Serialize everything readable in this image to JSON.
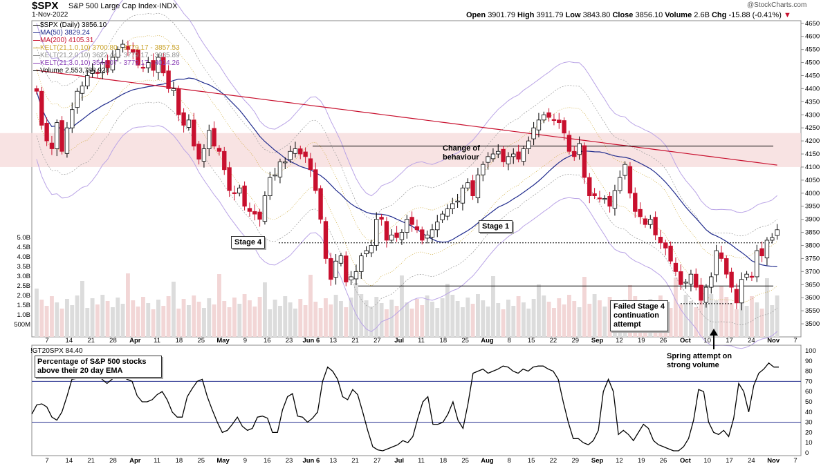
{
  "header": {
    "ticker": "$SPX",
    "description": "S&P 500 Large Cap Index·INDX",
    "date": "1-Nov-2022",
    "watermark": "@StockCharts.com",
    "ohlc": [
      {
        "label": "Open",
        "value": "3901.79"
      },
      {
        "label": "High",
        "value": "3911.79"
      },
      {
        "label": "Low",
        "value": "3843.80"
      },
      {
        "label": "Close",
        "value": "3856.10"
      },
      {
        "label": "Volume",
        "value": "2.6B"
      },
      {
        "label": "Chg",
        "value": "-15.88 (-0.41%)"
      }
    ],
    "chg_icon": "down-triangle-icon"
  },
  "legend": [
    {
      "text": "$SPX (Daily) 3856.10",
      "color": "#000000"
    },
    {
      "text": "MA(50) 3829.24",
      "color": "#1f2a8c"
    },
    {
      "text": "MA(200) 4105.31",
      "color": "#c8102e"
    },
    {
      "text": "KELT(21,1.0,10) 3700.80 - 3779.17 - 3857.53",
      "color": "#c9a227"
    },
    {
      "text": "KELT(21,2.0,10) 3622.44 - 3779.17 - 3935.89",
      "color": "#8e8e8e"
    },
    {
      "text": "KELT(21,3.0,10) 3544.07 - 3779.17 - 4014.26",
      "color": "#8a3fb5"
    },
    {
      "text": "Volume 2,553,788,928",
      "color": "#000000"
    }
  ],
  "annotations": {
    "stage4_left": "Stage 4",
    "change_of_behaviour": [
      "Change of",
      "behaviour"
    ],
    "stage1": "Stage 1",
    "failed_stage4": [
      "Failed Stage 4",
      "continuation",
      "attempt"
    ],
    "spring": [
      "Spring attempt on",
      "strong volume"
    ]
  },
  "lower": {
    "title": "!GT20SPX 84.40",
    "box": [
      "Percentage of S&P 500 stocks",
      "above their 20 day EMA"
    ]
  },
  "colors": {
    "up": "#ffffff",
    "down": "#c8102e",
    "ma50": "#1f2a8c",
    "ma200": "#c8102e",
    "kelt1": "#c9a227",
    "kelt2": "#999999",
    "kelt3": "#b9a3e6",
    "zone": "#f6dcdc"
  },
  "chart_data": [
    {
      "type": "candlestick",
      "title": "$SPX S&P 500 Large Cap Index",
      "ylim": [
        3450,
        4660
      ],
      "y_ticks": [
        3500,
        3550,
        3600,
        3650,
        3700,
        3750,
        3800,
        3850,
        3900,
        3950,
        4000,
        4050,
        4100,
        4150,
        4200,
        4250,
        4300,
        4350,
        4400,
        4450,
        4500,
        4550,
        4600,
        4650
      ],
      "x_labels": [
        "7",
        "14",
        "21",
        "28",
        "Apr",
        "11",
        "18",
        "25",
        "May",
        "9",
        "16",
        "23",
        "Jun 6",
        "13",
        "21",
        "27",
        "Jul",
        "11",
        "18",
        "25",
        "Aug",
        "8",
        "15",
        "22",
        "29",
        "Sep",
        "12",
        "19",
        "26",
        "Oct",
        "10",
        "17",
        "24",
        "Nov",
        "7"
      ],
      "volume_ticks": [
        "500M",
        "1.0B",
        "1.5B",
        "2.0B",
        "2.5B",
        "3.0B",
        "3.5B",
        "4.0B",
        "4.5B",
        "5.0B"
      ],
      "horizontal_levels": {
        "resistance": 4180,
        "stage1_dotted": 3810,
        "support": 3645,
        "failed_dotted": 3577
      },
      "resistance_zone": [
        4100,
        4230
      ],
      "closes": [
        4390,
        4260,
        4200,
        4170,
        4270,
        4160,
        4250,
        4320,
        4390,
        4410,
        4450,
        4470,
        4460,
        4500,
        4480,
        4520,
        4550,
        4570,
        4550,
        4540,
        4490,
        4480,
        4500,
        4470,
        4520,
        4460,
        4400,
        4400,
        4300,
        4260,
        4280,
        4180,
        4130,
        4170,
        4240,
        4180,
        4160,
        4090,
        4010,
        4000,
        4020,
        3950,
        3930,
        3920,
        3900,
        3990,
        4060,
        4070,
        4120,
        4120,
        4160,
        4170,
        4150,
        4140,
        4090,
        4010,
        3900,
        3750,
        3670,
        3740,
        3760,
        3660,
        3680,
        3700,
        3760,
        3780,
        3800,
        3900,
        3900,
        3820,
        3840,
        3830,
        3850,
        3900,
        3880,
        3860,
        3820,
        3840,
        3860,
        3890,
        3920,
        3940,
        3960,
        3970,
        4020,
        4040,
        3990,
        4070,
        4110,
        4140,
        4150,
        4160,
        4120,
        4140,
        4150,
        4130,
        4170,
        4200,
        4250,
        4280,
        4300,
        4290,
        4280,
        4270,
        4230,
        4160,
        4140,
        4190,
        4060,
        3990,
        3990,
        3980,
        3980,
        3950,
        4010,
        4060,
        4110,
        4000,
        3930,
        3910,
        3880,
        3900,
        3840,
        3810,
        3790,
        3740,
        3700,
        3650,
        3660,
        3690,
        3640,
        3590,
        3640,
        3680,
        3780,
        3750,
        3690,
        3640,
        3580,
        3670,
        3690,
        3680,
        3780,
        3760,
        3820,
        3830,
        3860
      ]
    },
    {
      "type": "line",
      "title": "!GT20SPX 84.40",
      "ylim": [
        0,
        100
      ],
      "y_ticks": [
        0,
        10,
        20,
        30,
        40,
        50,
        60,
        70,
        80,
        90,
        100
      ],
      "reference_lines": [
        70,
        30
      ],
      "values": [
        38,
        47,
        48,
        45,
        35,
        32,
        40,
        55,
        72,
        73,
        86,
        85,
        80,
        82,
        72,
        68,
        72,
        78,
        75,
        72,
        70,
        56,
        50,
        50,
        52,
        57,
        60,
        52,
        40,
        35,
        35,
        55,
        63,
        70,
        72,
        55,
        42,
        30,
        20,
        22,
        28,
        35,
        26,
        22,
        24,
        35,
        36,
        34,
        20,
        20,
        42,
        55,
        58,
        36,
        35,
        30,
        34,
        40,
        70,
        84,
        80,
        72,
        55,
        52,
        62,
        57,
        40,
        22,
        6,
        3,
        2,
        4,
        6,
        8,
        12,
        10,
        16,
        34,
        50,
        55,
        28,
        28,
        30,
        38,
        50,
        32,
        24,
        48,
        78,
        80,
        82,
        78,
        80,
        82,
        85,
        84,
        80,
        78,
        82,
        80,
        84,
        85,
        85,
        82,
        80,
        72,
        50,
        30,
        14,
        14,
        10,
        8,
        12,
        22,
        60,
        72,
        60,
        18,
        22,
        18,
        12,
        20,
        28,
        24,
        12,
        8,
        6,
        4,
        2,
        2,
        6,
        14,
        32,
        62,
        60,
        30,
        20,
        18,
        22,
        16,
        34,
        68,
        60,
        40,
        66,
        78,
        82,
        88,
        84,
        84
      ]
    }
  ]
}
